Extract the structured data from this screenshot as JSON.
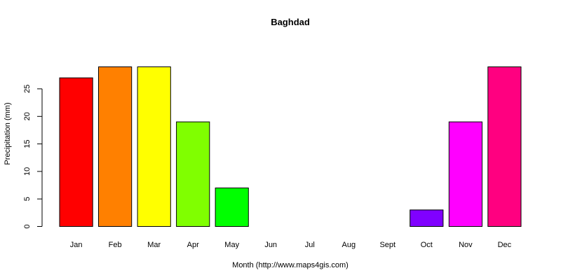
{
  "chart_data": {
    "type": "bar",
    "title": "Baghdad",
    "xlabel": "Month (http://www.maps4gis.com)",
    "ylabel": "Precipitation (mm)",
    "categories": [
      "Jan",
      "Feb",
      "Mar",
      "Apr",
      "May",
      "Jun",
      "Jul",
      "Aug",
      "Sept",
      "Oct",
      "Nov",
      "Dec"
    ],
    "values": [
      27,
      29,
      29,
      19,
      7,
      0,
      0,
      0,
      0,
      3,
      19,
      29
    ],
    "colors": [
      "#ff0000",
      "#ff8000",
      "#ffff00",
      "#80ff00",
      "#00ff00",
      "#00ff80",
      "#00ffff",
      "#0080ff",
      "#0000ff",
      "#8000ff",
      "#ff00ff",
      "#ff0080"
    ],
    "ylim": [
      0,
      29
    ],
    "yticks": [
      0,
      5,
      10,
      15,
      20,
      25
    ],
    "grid": false,
    "legend": "none"
  }
}
